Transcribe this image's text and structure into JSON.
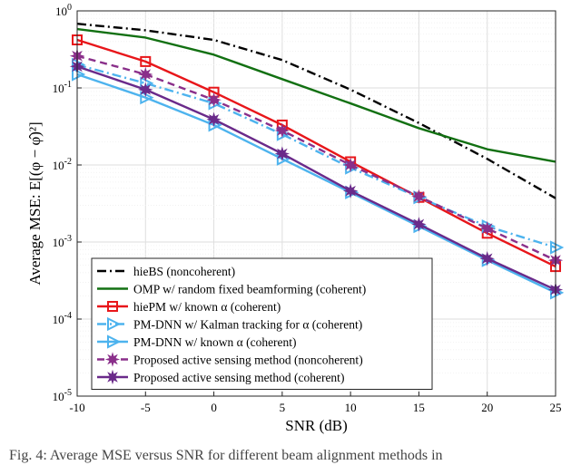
{
  "chart_data": {
    "type": "line",
    "xlabel": "SNR (dB)",
    "ylabel": "Average MSE: E[(φ − φ̂)²]",
    "x_ticks": [
      "-10",
      "-5",
      "0",
      "5",
      "10",
      "15",
      "20",
      "25"
    ],
    "y_ticks": [
      "10⁻⁵",
      "10⁻⁴",
      "10⁻³",
      "10⁻²",
      "10⁻¹",
      "10⁰"
    ],
    "xlim": [
      -10,
      25
    ],
    "ylim": [
      1e-05,
      1
    ],
    "y_scale": "log",
    "grid": true,
    "legend_position": "bottom-left",
    "x": [
      -10,
      -5,
      0,
      5,
      10,
      15,
      20,
      25
    ],
    "series": [
      {
        "name": "hieBS (noncoherent)",
        "color": "#000000",
        "dash": "dashdot",
        "marker": "none",
        "values": [
          0.68,
          0.56,
          0.42,
          0.23,
          0.095,
          0.035,
          0.012,
          0.0037
        ]
      },
      {
        "name": "OMP w/ random fixed beamforming (coherent)",
        "color": "#127012",
        "dash": "solid",
        "marker": "none",
        "values": [
          0.58,
          0.45,
          0.27,
          0.13,
          0.063,
          0.03,
          0.016,
          0.011
        ]
      },
      {
        "name": "hiePM w/ known α (coherent)",
        "color": "#e8161a",
        "dash": "solid",
        "marker": "square",
        "values": [
          0.42,
          0.22,
          0.088,
          0.033,
          0.011,
          0.0038,
          0.0013,
          0.00048
        ]
      },
      {
        "name": "PM-DNN w/ Kalman tracking for α (coherent)",
        "color": "#4db3ee",
        "dash": "dashdot",
        "marker": "triangle-right",
        "values": [
          0.2,
          0.115,
          0.063,
          0.025,
          0.0092,
          0.0038,
          0.0016,
          0.00085
        ]
      },
      {
        "name": "PM-DNN w/ known α (coherent)",
        "color": "#4db3ee",
        "dash": "solid",
        "marker": "triangle-right",
        "values": [
          0.15,
          0.075,
          0.033,
          0.012,
          0.0044,
          0.0016,
          0.00058,
          0.00022
        ]
      },
      {
        "name": "Proposed active sensing method (noncoherent)",
        "color": "#8a2f8a",
        "dash": "dashed",
        "marker": "star",
        "values": [
          0.26,
          0.15,
          0.07,
          0.028,
          0.01,
          0.0039,
          0.0015,
          0.00058
        ]
      },
      {
        "name": "Proposed active sensing method (coherent)",
        "color": "#6a2a8a",
        "dash": "solid",
        "marker": "star",
        "values": [
          0.19,
          0.095,
          0.039,
          0.014,
          0.0046,
          0.0017,
          0.00061,
          0.00024
        ]
      }
    ]
  },
  "caption": "Fig. 4: Average MSE versus SNR for different beam alignment methods in"
}
